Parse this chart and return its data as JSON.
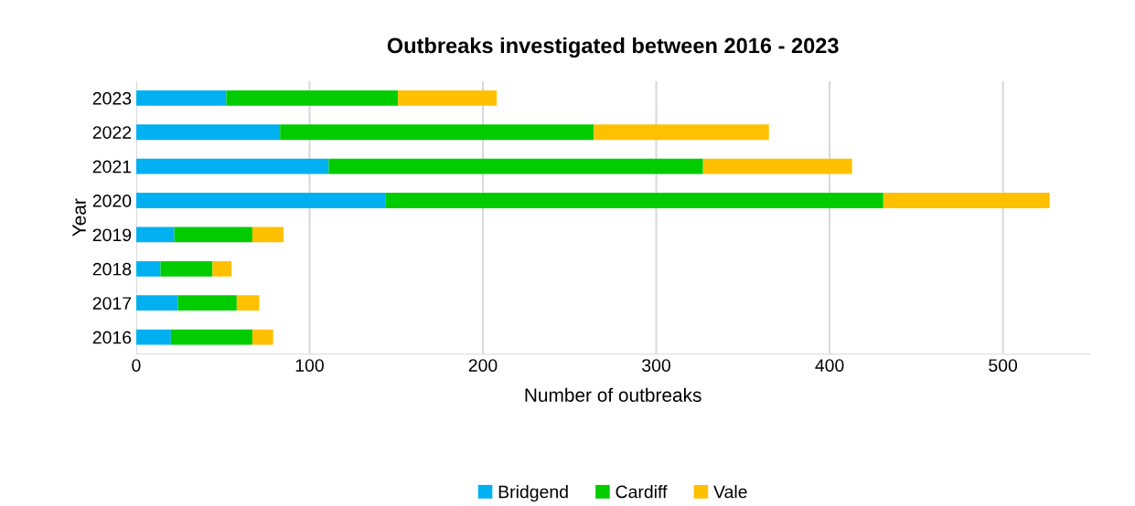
{
  "chart_data": {
    "type": "bar",
    "orientation": "horizontal",
    "stacked": true,
    "title": "Outbreaks investigated between 2016 - 2023",
    "xlabel": "Number of outbreaks",
    "ylabel": "Year",
    "categories": [
      "2023",
      "2022",
      "2021",
      "2020",
      "2019",
      "2018",
      "2017",
      "2016"
    ],
    "series": [
      {
        "name": "Bridgend",
        "color": "#00b0f0",
        "values": [
          52,
          83,
          111,
          144,
          22,
          14,
          24,
          20
        ]
      },
      {
        "name": "Cardiff",
        "color": "#00cc00",
        "values": [
          99,
          181,
          216,
          287,
          45,
          30,
          34,
          47
        ]
      },
      {
        "name": "Vale",
        "color": "#ffc000",
        "values": [
          57,
          101,
          86,
          96,
          18,
          11,
          13,
          12
        ]
      }
    ],
    "xlim": [
      0,
      550
    ],
    "xticks": [
      0,
      100,
      200,
      300,
      400,
      500
    ],
    "grid": "x",
    "legend": "bottom"
  }
}
